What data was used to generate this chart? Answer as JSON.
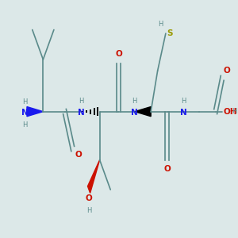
{
  "bg_color": "#dce8e8",
  "bond_color": "#5a8a8a",
  "bond_width": 1.2,
  "N_color": "#1a1aee",
  "O_color": "#cc1100",
  "S_color": "#999900",
  "H_color": "#5a8a8a",
  "figsize": [
    3.0,
    3.0
  ],
  "dpi": 100,
  "xlim": [
    -0.3,
    8.1
  ],
  "ylim": [
    -1.2,
    2.0
  ]
}
